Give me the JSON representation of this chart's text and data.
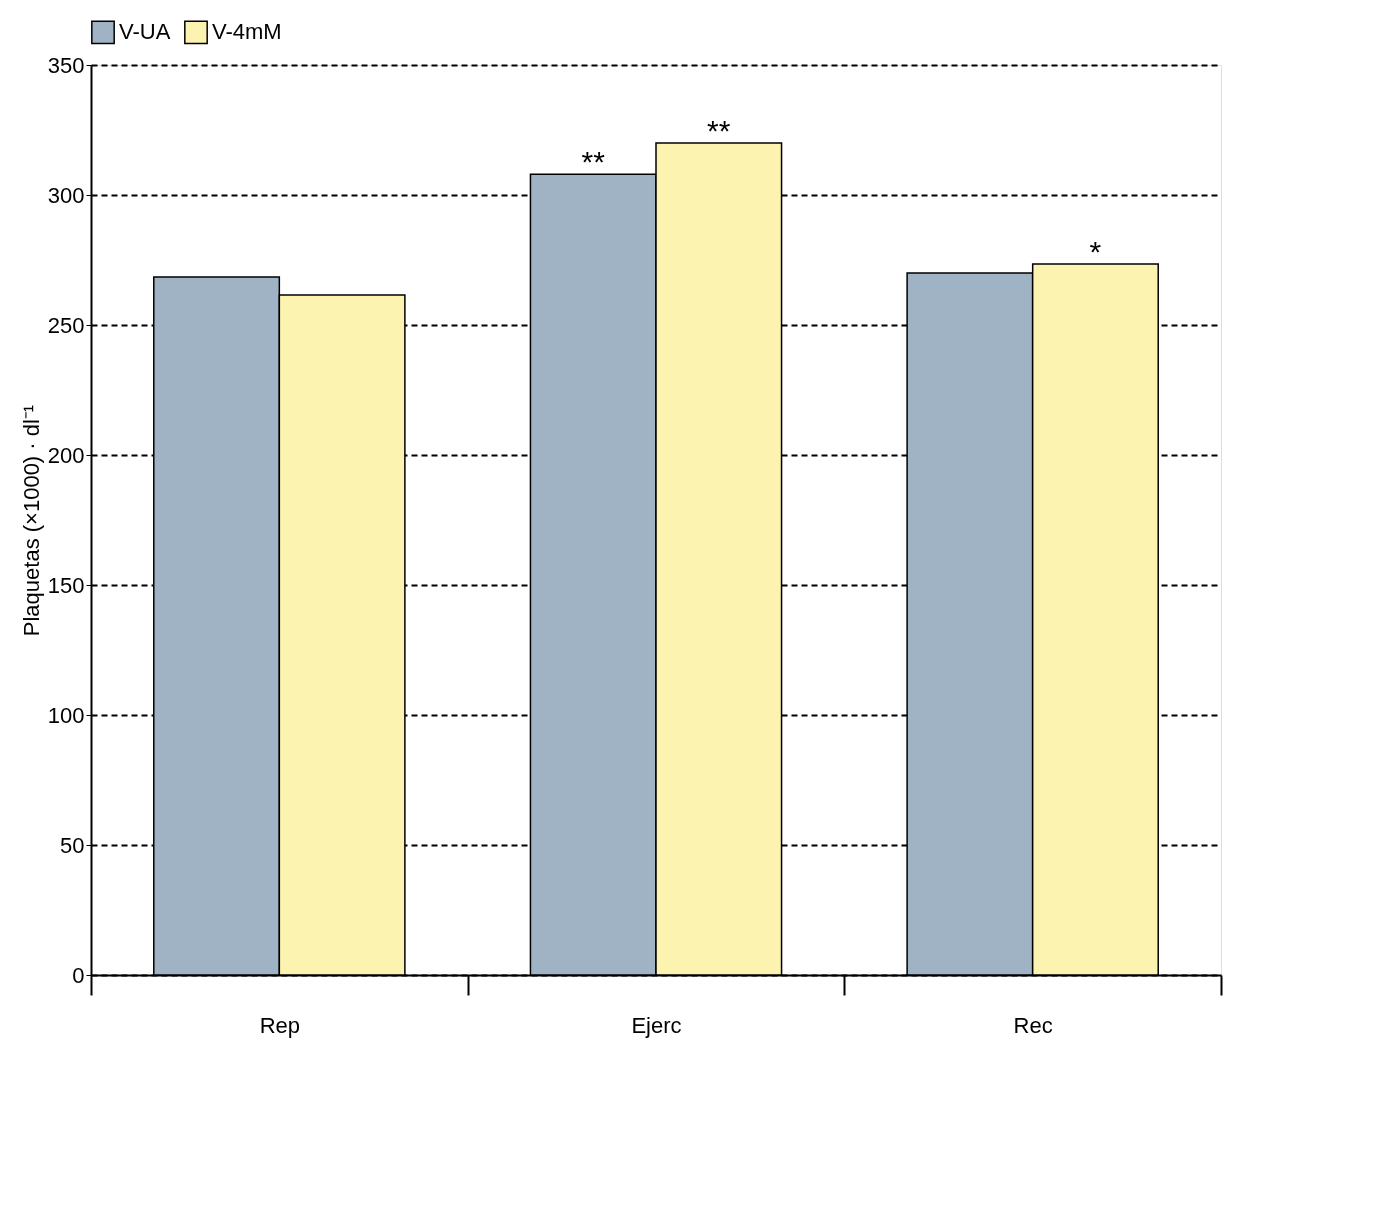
{
  "chart_data": {
    "type": "bar",
    "ylabel": "Plaquetas (×1000) · dl⁻¹",
    "categories": [
      "Rep",
      "Ejerc",
      "Rec"
    ],
    "series": [
      {
        "name": "V-UA",
        "color": "#9fb3c4",
        "values": [
          268.5,
          308,
          270
        ]
      },
      {
        "name": "V-4mM",
        "color": "#fdf3b0",
        "values": [
          261.5,
          320,
          273.5
        ]
      }
    ],
    "ylim": [
      0,
      350
    ],
    "yticks": [
      0,
      50,
      100,
      150,
      200,
      250,
      300,
      350
    ],
    "grid": "y",
    "legend": "top",
    "annotations": [
      {
        "text": "**",
        "x": "Ejerc",
        "y": 308
      },
      {
        "text": "**",
        "x": "Ejerc",
        "y": 320
      },
      {
        "text": "*",
        "x": "Rec",
        "y": 273.5
      }
    ]
  }
}
